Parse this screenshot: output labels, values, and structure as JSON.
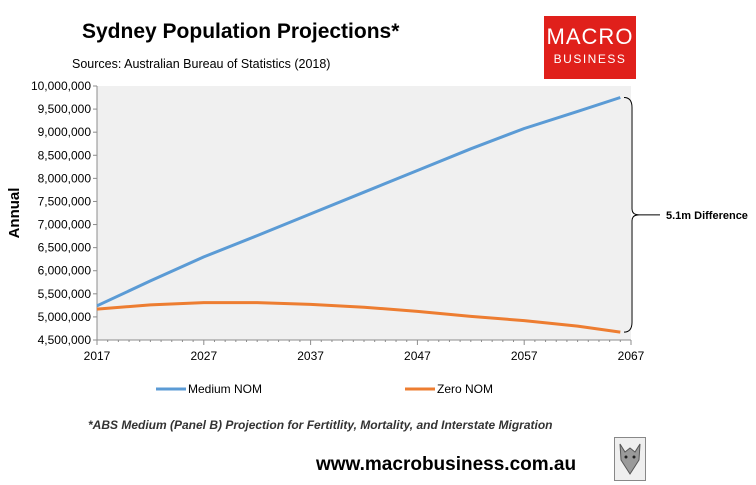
{
  "header": {
    "title": "Sydney Population Projections*",
    "source": "Sources: Australian Bureau of Statistics (2018)"
  },
  "logo": {
    "line1": "MACRO",
    "line2": "BUSINESS"
  },
  "footnote": "*ABS Medium (Panel B) Projection for Fertitlity, Mortality, and Interstate Migration",
  "website": "www.macrobusiness.com.au",
  "colors": {
    "medium": "#5b9bd5",
    "zero": "#ed7d31",
    "plot_bg": "#f0f0f0",
    "logo_bg": "#e0201b"
  },
  "chart_data": {
    "type": "line",
    "title": "Sydney Population Projections*",
    "ylabel": "Annual",
    "xlabel": "",
    "xlim": [
      2017,
      2067
    ],
    "ylim": [
      4500000,
      10000000
    ],
    "x_ticks": [
      "2017",
      "2027",
      "2037",
      "2047",
      "2057",
      "2067"
    ],
    "y_ticks": [
      "4,500,000",
      "5,000,000",
      "5,500,000",
      "6,000,000",
      "6,500,000",
      "7,000,000",
      "7,500,000",
      "8,000,000",
      "8,500,000",
      "9,000,000",
      "9,500,000",
      "10,000,000"
    ],
    "x": [
      2017,
      2022,
      2027,
      2032,
      2037,
      2042,
      2047,
      2052,
      2057,
      2062,
      2066
    ],
    "series": [
      {
        "name": "Medium NOM",
        "values": [
          5240000,
          5780000,
          6300000,
          6760000,
          7230000,
          7700000,
          8170000,
          8640000,
          9080000,
          9450000,
          9750000
        ]
      },
      {
        "name": "Zero NOM",
        "values": [
          5170000,
          5260000,
          5310000,
          5310000,
          5270000,
          5210000,
          5120000,
          5010000,
          4920000,
          4800000,
          4670000
        ]
      }
    ],
    "legend": [
      "Medium NOM",
      "Zero NOM"
    ],
    "legend_position": "bottom",
    "annotation": "5.1m Difference",
    "grid": false
  }
}
